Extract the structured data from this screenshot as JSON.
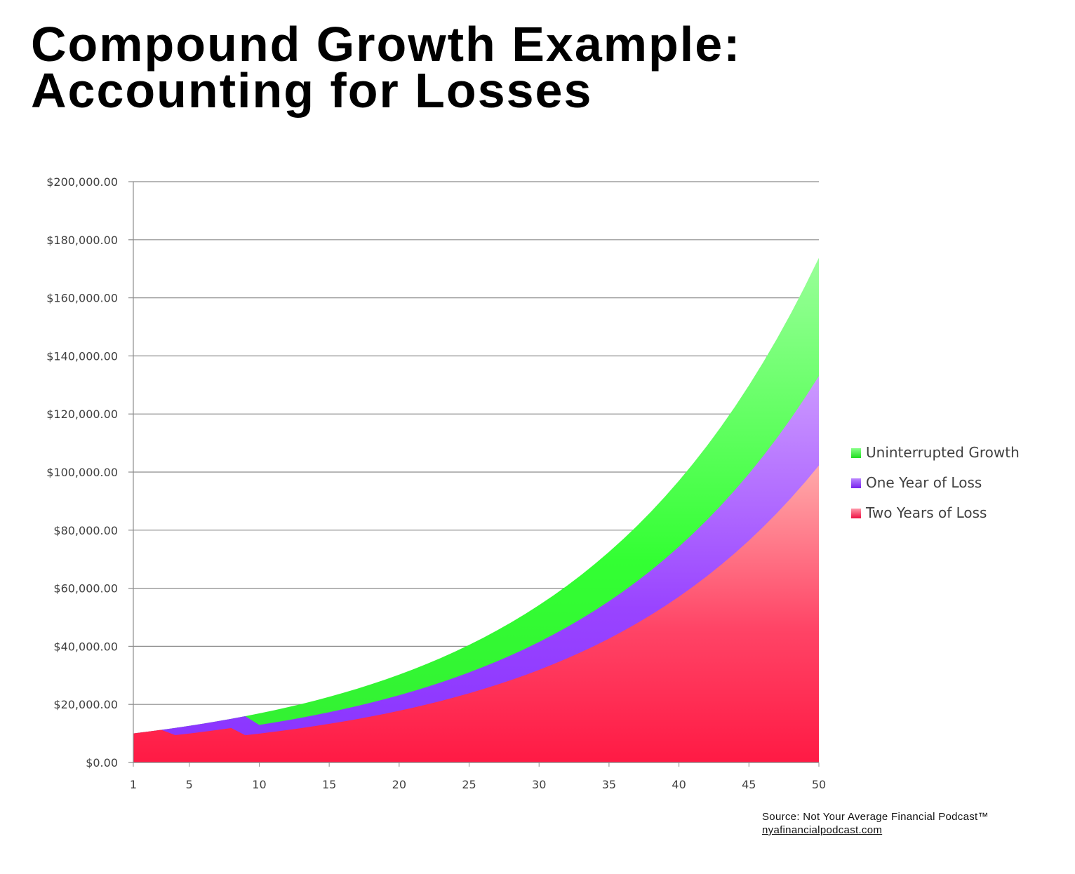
{
  "title_line1": "Compound Growth Example:",
  "title_line2": "Accounting for Losses",
  "source_text": "Source: Not Your Average Financial Podcast™",
  "source_link": "nyafinancialpodcast.com",
  "chart_data": {
    "type": "area",
    "title": "",
    "xlabel": "",
    "ylabel": "",
    "x_tick_labels": [
      "1",
      "5",
      "10",
      "15",
      "20",
      "25",
      "30",
      "35",
      "40",
      "45",
      "50"
    ],
    "y_tick_labels": [
      "$0.00",
      "$20,000.00",
      "$40,000.00",
      "$60,000.00",
      "$80,000.00",
      "$100,000.00",
      "$120,000.00",
      "$140,000.00",
      "$160,000.00",
      "$180,000.00",
      "$200,000.00"
    ],
    "x": [
      1,
      2,
      3,
      4,
      5,
      6,
      7,
      8,
      9,
      10,
      11,
      12,
      13,
      14,
      15,
      16,
      17,
      18,
      19,
      20,
      21,
      22,
      23,
      24,
      25,
      26,
      27,
      28,
      29,
      30,
      31,
      32,
      33,
      34,
      35,
      36,
      37,
      38,
      39,
      40,
      41,
      42,
      43,
      44,
      45,
      46,
      47,
      48,
      49,
      50
    ],
    "xlim": [
      1,
      50
    ],
    "ylim": [
      0,
      200000
    ],
    "grid": true,
    "legend_position": "right",
    "series": [
      {
        "name": "Uninterrupted Growth",
        "color": "#33ff33",
        "values": [
          10000,
          10600,
          11236,
          11910,
          12625,
          13382,
          14185,
          15036,
          15938,
          16895,
          17908,
          18983,
          20122,
          21329,
          22609,
          23966,
          25404,
          26928,
          28543,
          30256,
          32071,
          33996,
          36035,
          38197,
          40489,
          42919,
          45494,
          48223,
          51117,
          54184,
          57435,
          60881,
          64534,
          68406,
          72510,
          76861,
          81473,
          86361,
          91543,
          97035,
          102857,
          109029,
          115570,
          122504,
          129855,
          137646,
          145905,
          154659,
          163938,
          173775
        ]
      },
      {
        "name": "One Year of Loss",
        "color": "#9933ff",
        "values": [
          10000,
          10600,
          11236,
          11910,
          12625,
          13382,
          14185,
          15036,
          15938,
          12938,
          13714,
          14537,
          15409,
          16333,
          17313,
          18352,
          19453,
          20621,
          21858,
          23169,
          24560,
          26033,
          27595,
          29251,
          31006,
          32866,
          34838,
          36928,
          39144,
          41493,
          43982,
          46621,
          49418,
          52383,
          55526,
          58858,
          62389,
          66133,
          70101,
          74307,
          78765,
          83491,
          88500,
          93810,
          99439,
          105405,
          111730,
          118433,
          125539,
          133072
        ]
      },
      {
        "name": "Two Years of Loss",
        "color": "#ff2255",
        "values": [
          10000,
          10600,
          11236,
          9410,
          9975,
          10573,
          11207,
          11880,
          9380,
          9943,
          10540,
          11172,
          11842,
          12553,
          13306,
          14104,
          14950,
          15847,
          16798,
          17806,
          18875,
          20007,
          21207,
          22480,
          23829,
          25258,
          26774,
          28380,
          30083,
          31888,
          33801,
          35829,
          37979,
          40258,
          42673,
          45234,
          47948,
          50825,
          53874,
          57107,
          60533,
          64165,
          68015,
          72096,
          76422,
          81007,
          85867,
          91019,
          96481,
          102269
        ]
      }
    ]
  }
}
